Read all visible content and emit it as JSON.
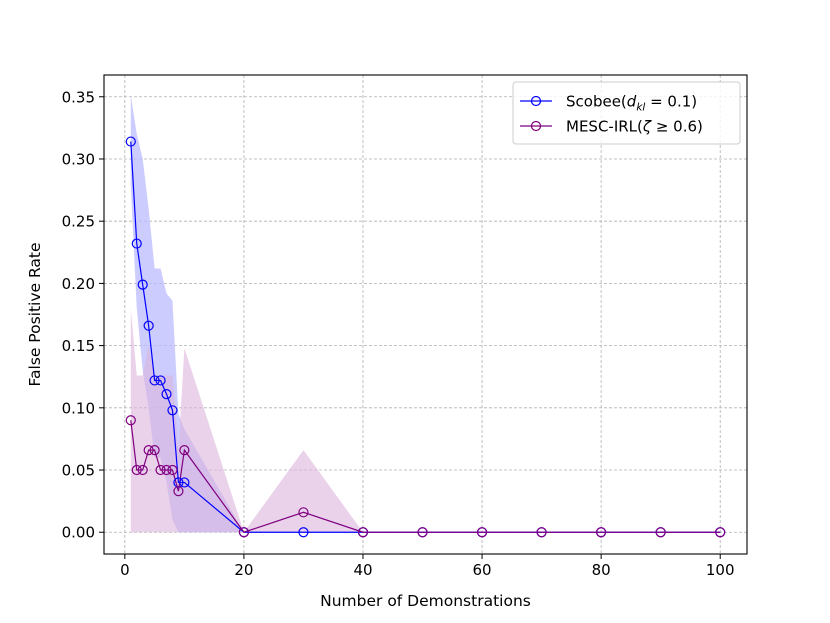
{
  "chart_data": {
    "type": "line",
    "title": "",
    "xlabel": "Number of Demonstrations",
    "ylabel": "False Positive Rate",
    "xlim": [
      -3.5,
      104.5
    ],
    "ylim": [
      -0.0175,
      0.3675
    ],
    "xticks": [
      0,
      20,
      40,
      60,
      80,
      100
    ],
    "xtick_labels": [
      "0",
      "20",
      "40",
      "60",
      "80",
      "100"
    ],
    "yticks": [
      0.0,
      0.05,
      0.1,
      0.15,
      0.2,
      0.25,
      0.3,
      0.35
    ],
    "ytick_labels": [
      "0.00",
      "0.05",
      "0.10",
      "0.15",
      "0.20",
      "0.25",
      "0.30",
      "0.35"
    ],
    "grid": true,
    "legend_position": "top-right",
    "series": [
      {
        "name": "Scobee(d_kl = 0.1)",
        "legend_prefix": "Scobee(",
        "legend_var": "d",
        "legend_sub": "kl",
        "legend_suffix": " = 0.1)",
        "color": "#0000ff",
        "band_color": "#bbbbff",
        "x": [
          1,
          2,
          3,
          4,
          5,
          6,
          7,
          8,
          9,
          10,
          20,
          30,
          40,
          50,
          60,
          70,
          80,
          90,
          100
        ],
        "y": [
          0.314,
          0.232,
          0.199,
          0.166,
          0.122,
          0.122,
          0.111,
          0.098,
          0.04,
          0.04,
          0.0,
          0.0,
          0.0,
          0.0,
          0.0,
          0.0,
          0.0,
          0.0,
          0.0
        ],
        "y_lower": [
          0.278,
          0.18,
          0.13,
          0.1,
          0.06,
          0.06,
          0.04,
          0.01,
          0.0,
          0.0,
          0.0,
          0.0,
          0.0,
          0.0,
          0.0,
          0.0,
          0.0,
          0.0,
          0.0
        ],
        "y_upper": [
          0.351,
          0.32,
          0.3,
          0.26,
          0.212,
          0.212,
          0.192,
          0.186,
          0.095,
          0.083,
          0.0,
          0.0,
          0.0,
          0.0,
          0.0,
          0.0,
          0.0,
          0.0,
          0.0
        ]
      },
      {
        "name": "MESC-IRL(ζ ≥ 0.6)",
        "legend_prefix": "MESC-IRL(",
        "legend_var": "ζ",
        "legend_sub": "",
        "legend_suffix": " ≥ 0.6)",
        "color": "#800080",
        "band_color": "#dcb4dc",
        "x": [
          1,
          2,
          3,
          4,
          5,
          6,
          7,
          8,
          9,
          10,
          20,
          30,
          40,
          50,
          60,
          70,
          80,
          90,
          100
        ],
        "y": [
          0.09,
          0.05,
          0.05,
          0.066,
          0.066,
          0.05,
          0.05,
          0.05,
          0.033,
          0.066,
          0.0,
          0.016,
          0.0,
          0.0,
          0.0,
          0.0,
          0.0,
          0.0,
          0.0
        ],
        "y_lower": [
          0.0,
          0.0,
          0.0,
          0.0,
          0.0,
          0.0,
          0.0,
          0.0,
          0.0,
          0.0,
          0.0,
          0.0,
          0.0,
          0.0,
          0.0,
          0.0,
          0.0,
          0.0,
          0.0
        ],
        "y_upper": [
          0.18,
          0.126,
          0.126,
          0.15,
          0.126,
          0.126,
          0.126,
          0.126,
          0.066,
          0.148,
          0.0,
          0.066,
          0.0,
          0.0,
          0.0,
          0.0,
          0.0,
          0.0,
          0.0
        ]
      }
    ]
  }
}
